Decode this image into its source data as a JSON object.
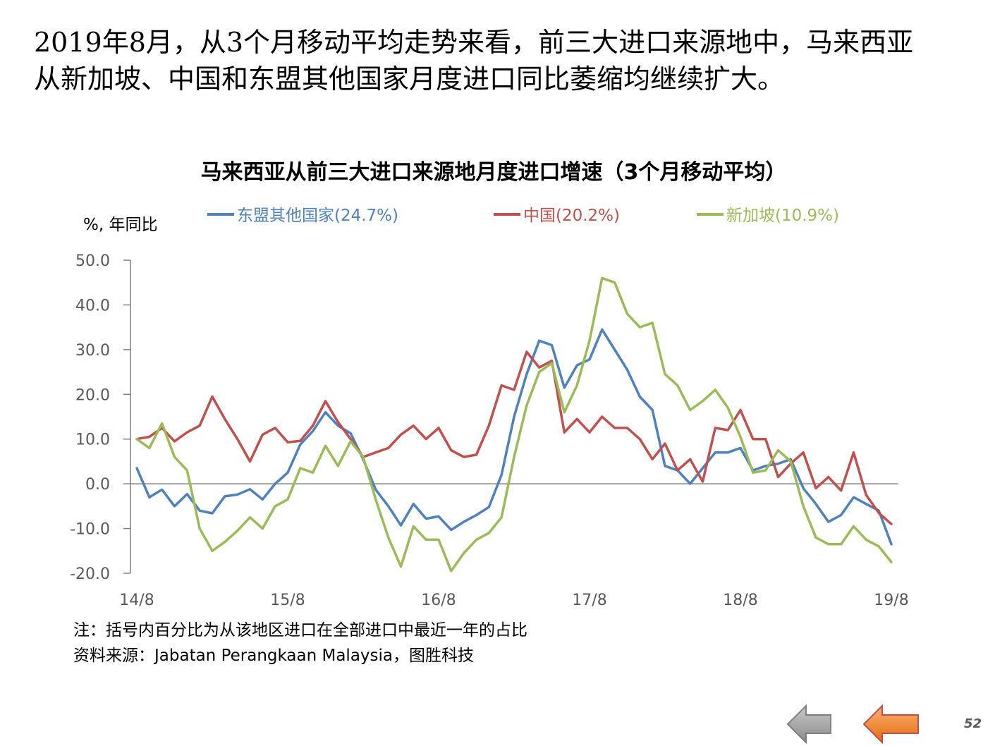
{
  "headline": {
    "line1": "2019年8月，从3个月移动平均走势来看，前三大进口来源地中，马来西亚",
    "line2": "从新加坡、中国和东盟其他国家月度进口同比萎缩均继续扩大。"
  },
  "chart_data": {
    "type": "line",
    "title": "马来西亚从前三大进口来源地月度进口增速（3个月移动平均）",
    "ylabel": "%, 年同比",
    "ylim": [
      -20,
      50
    ],
    "yticks": [
      50,
      40,
      30,
      20,
      10,
      0,
      -10,
      -20
    ],
    "ytick_labels": [
      "50.0",
      "40.0",
      "30.0",
      "20.0",
      "10.0",
      "0.0",
      "-10.0",
      "-20.0"
    ],
    "x_tick_labels": [
      "14/8",
      "15/8",
      "16/8",
      "17/8",
      "18/8",
      "19/8"
    ],
    "x_tick_index": [
      0,
      12,
      24,
      36,
      48,
      60
    ],
    "x_count": 61,
    "grid": false,
    "legend_position": "top",
    "series": [
      {
        "name": "东盟其他国家(24.7%)",
        "color": "#4F81BD",
        "values": [
          3.5,
          -3.0,
          -1.3,
          -5.0,
          -2.3,
          -6.0,
          -6.6,
          -2.8,
          -2.4,
          -1.2,
          -3.5,
          0.0,
          2.5,
          8.8,
          11.8,
          16.0,
          13.0,
          11.3,
          5.5,
          -1.3,
          -5.0,
          -9.3,
          -4.5,
          -7.8,
          -7.3,
          -10.3,
          -8.5,
          -7.0,
          -5.2,
          2.0,
          15.0,
          24.5,
          32.0,
          31.0,
          21.5,
          26.5,
          27.8,
          34.5,
          30.0,
          25.5,
          19.5,
          16.5,
          4.0,
          3.0,
          0.0,
          3.5,
          7.0,
          7.0,
          8.0,
          3.0,
          4.0,
          4.5,
          5.5,
          -1.0,
          -4.5,
          -8.5,
          -7.0,
          -3.0,
          -4.5,
          -6.0,
          -13.5
        ]
      },
      {
        "name": "中国(20.2%)",
        "color": "#C0504D",
        "values": [
          10.0,
          10.5,
          12.5,
          9.5,
          11.5,
          13.0,
          19.5,
          14.5,
          10.0,
          5.0,
          11.0,
          12.5,
          9.3,
          9.6,
          13.0,
          18.5,
          13.8,
          10.0,
          6.0,
          7.0,
          8.0,
          11.0,
          13.0,
          10.0,
          12.5,
          7.5,
          6.0,
          6.5,
          13.0,
          22.0,
          21.0,
          29.5,
          26.0,
          27.5,
          11.5,
          14.5,
          11.5,
          15.0,
          12.5,
          12.5,
          10.0,
          5.5,
          9.0,
          3.0,
          5.5,
          0.5,
          12.5,
          12.0,
          16.5,
          10.0,
          10.0,
          1.5,
          4.5,
          7.0,
          -1.0,
          1.5,
          -1.5,
          7.0,
          -2.5,
          -6.5,
          -9.0
        ]
      },
      {
        "name": "新加坡(10.9%)",
        "color": "#9BBB59",
        "values": [
          10.0,
          8.0,
          13.5,
          6.0,
          3.0,
          -10.0,
          -15.0,
          -13.0,
          -10.5,
          -7.5,
          -10.0,
          -5.0,
          -3.5,
          3.5,
          2.5,
          8.5,
          4.0,
          9.5,
          6.0,
          -3.5,
          -12.0,
          -18.5,
          -9.5,
          -12.5,
          -12.5,
          -19.5,
          -15.5,
          -12.5,
          -11.0,
          -7.5,
          6.0,
          17.5,
          25.0,
          27.0,
          16.0,
          22.0,
          32.0,
          46.0,
          45.0,
          38.0,
          35.0,
          36.0,
          24.5,
          22.0,
          16.5,
          18.5,
          21.0,
          17.0,
          10.5,
          2.5,
          3.0,
          7.5,
          5.0,
          -5.0,
          -12.0,
          -13.5,
          -13.5,
          -9.5,
          -12.5,
          -14.0,
          -17.5
        ]
      }
    ],
    "notes": [
      "注：括号内百分比为从该地区进口在全部进口中最近一年的占比",
      "资料来源：Jabatan Perangkaan Malaysia，图胜科技"
    ]
  },
  "nav": {
    "prev_icon": "left-arrow-gray-icon",
    "next_icon": "left-arrow-orange-icon",
    "gray_color": "#A6A6A6",
    "orange_color": "#F79646"
  },
  "page_number": "52"
}
